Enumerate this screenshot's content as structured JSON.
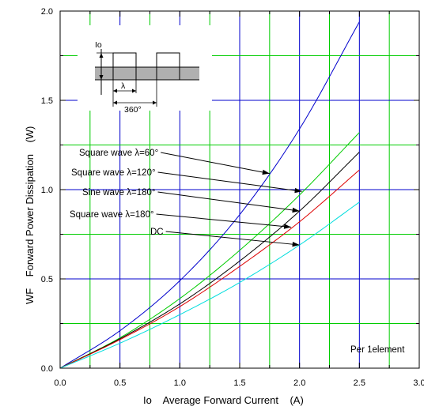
{
  "chart_data": {
    "type": "line",
    "xlabel": "Io    Average Forward Current    (A)",
    "ylabel": "WF    Forward Power Dissipation    (W)",
    "xlim": [
      0,
      3.0
    ],
    "ylim": [
      0,
      2.0
    ],
    "x_ticks": [
      "0.0",
      "0.5",
      "1.0",
      "1.5",
      "2.0",
      "2.5",
      "3.0"
    ],
    "y_ticks": [
      "0.0",
      "0.5",
      "1.0",
      "1.5",
      "2.0"
    ],
    "grid": true,
    "note": "Per 1element",
    "series": [
      {
        "name": "Square wave λ=60°",
        "color": "#0000cc",
        "x": [
          0,
          0.5,
          1.0,
          1.5,
          2.0,
          2.5
        ],
        "y": [
          0,
          0.21,
          0.49,
          0.86,
          1.34,
          1.94
        ]
      },
      {
        "name": "Square wave λ=120°",
        "color": "#00cc00",
        "x": [
          0,
          0.5,
          1.0,
          1.5,
          2.0,
          2.5
        ],
        "y": [
          0,
          0.17,
          0.39,
          0.66,
          0.97,
          1.32
        ]
      },
      {
        "name": "Sine wave λ=180°",
        "color": "#000000",
        "x": [
          0,
          0.5,
          1.0,
          1.5,
          2.0,
          2.5
        ],
        "y": [
          0,
          0.165,
          0.36,
          0.6,
          0.88,
          1.21
        ]
      },
      {
        "name": "Square wave λ=180°",
        "color": "#dd0000",
        "x": [
          0,
          0.5,
          1.0,
          1.5,
          2.0,
          2.5
        ],
        "y": [
          0,
          0.16,
          0.345,
          0.57,
          0.82,
          1.11
        ]
      },
      {
        "name": "DC",
        "color": "#00dddd",
        "x": [
          0,
          0.5,
          1.0,
          1.5,
          2.0,
          2.5
        ],
        "y": [
          0,
          0.14,
          0.3,
          0.48,
          0.69,
          0.93
        ]
      }
    ],
    "annotations": [
      {
        "label": "Square wave λ=60°",
        "target": [
          1.75,
          1.09
        ]
      },
      {
        "label": "Square wave λ=120°",
        "target": [
          2.02,
          0.99
        ]
      },
      {
        "label": "Sine wave λ=180°",
        "target": [
          2.0,
          0.88
        ]
      },
      {
        "label": "Square wave λ=180°",
        "target": [
          1.93,
          0.79
        ]
      },
      {
        "label": "DC",
        "target": [
          2.0,
          0.69
        ]
      }
    ],
    "inset": {
      "io_label": "Io",
      "lambda_label": "λ",
      "period_label": "360°"
    }
  }
}
